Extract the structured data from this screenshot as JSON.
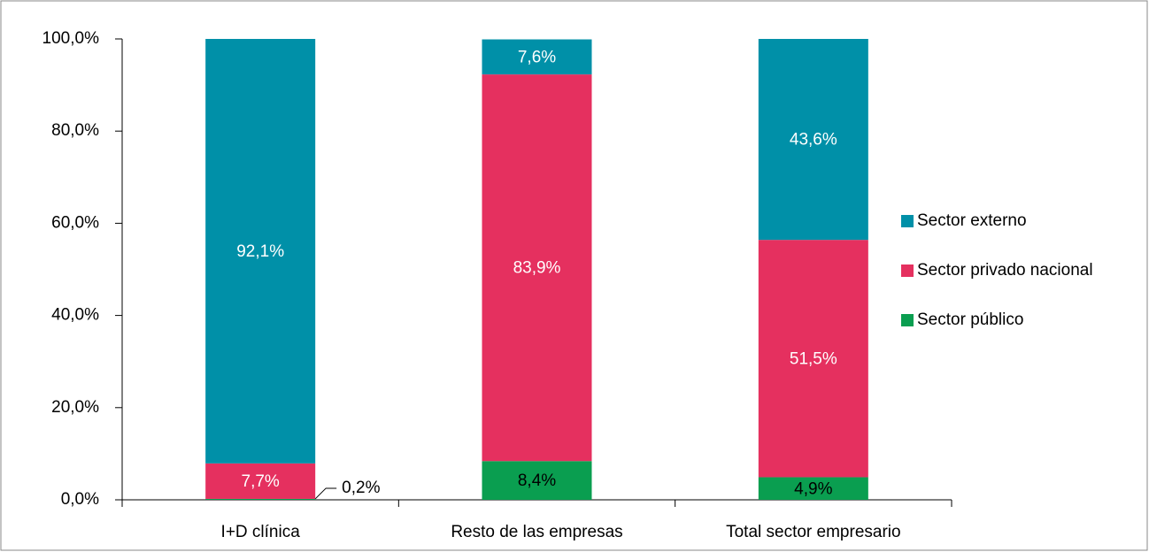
{
  "chart_data": {
    "type": "stacked_bar",
    "categories": [
      "I+D clínica",
      "Resto de las empresas",
      "Total sector empresario"
    ],
    "series": [
      {
        "name": "Sector público",
        "color": "#0a9e50",
        "values": [
          0.2,
          8.4,
          4.9
        ],
        "value_labels": [
          "0,2%",
          "8,4%",
          "4,9%"
        ]
      },
      {
        "name": "Sector privado nacional",
        "color": "#e5305f",
        "values": [
          7.7,
          83.9,
          51.5
        ],
        "value_labels": [
          "7,7%",
          "83,9%",
          "51,5%"
        ]
      },
      {
        "name": "Sector externo",
        "color": "#0090a8",
        "values": [
          92.1,
          7.6,
          43.6
        ],
        "value_labels": [
          "92,1%",
          "7,6%",
          "43,6%"
        ]
      }
    ],
    "ylim": [
      0,
      100
    ],
    "yticks": [
      {
        "value": 0,
        "label": "0,0%"
      },
      {
        "value": 20,
        "label": "20,0%"
      },
      {
        "value": 40,
        "label": "40,0%"
      },
      {
        "value": 60,
        "label": "60,0%"
      },
      {
        "value": 80,
        "label": "80,0%"
      },
      {
        "value": 100,
        "label": "100,0%"
      }
    ],
    "legend": "right"
  }
}
